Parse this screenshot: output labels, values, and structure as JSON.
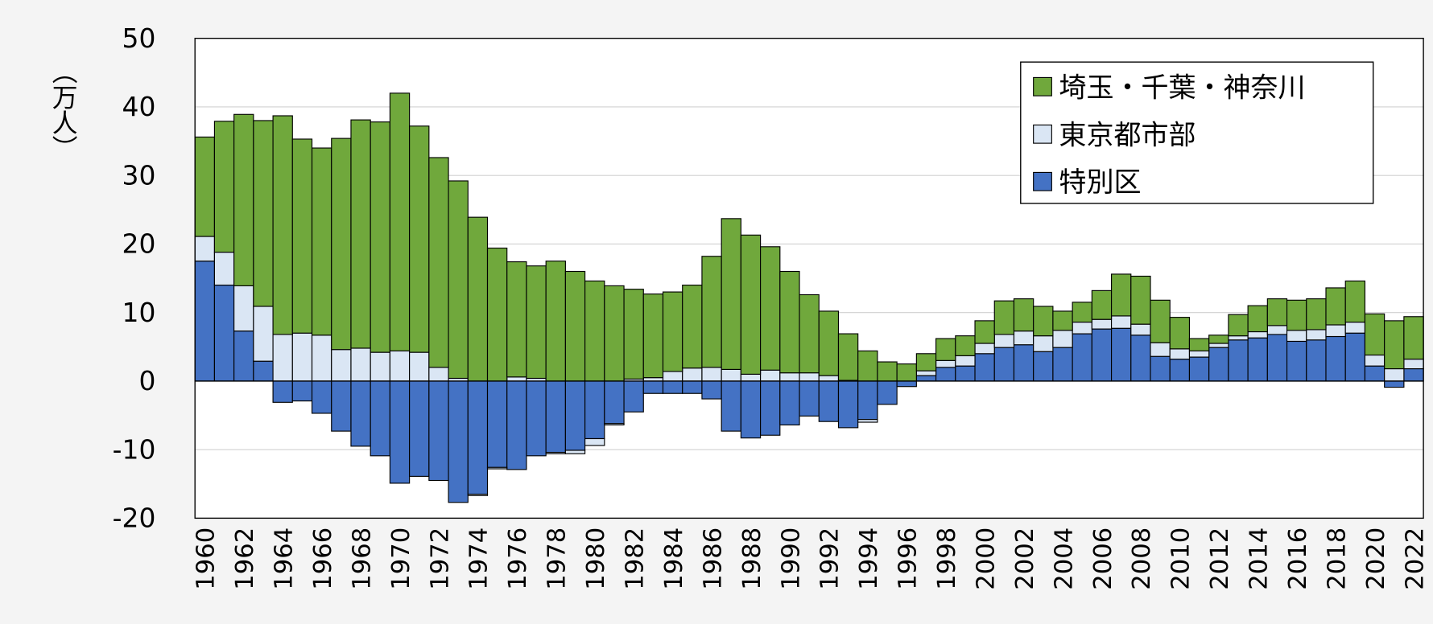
{
  "chart_data": {
    "type": "bar",
    "stacked": true,
    "y_label": "（万人）",
    "categories": [
      "1960",
      null,
      "1962",
      null,
      "1964",
      null,
      "1966",
      null,
      "1968",
      null,
      "1970",
      null,
      "1972",
      null,
      "1974",
      null,
      "1976",
      null,
      "1978",
      null,
      "1980",
      null,
      "1982",
      null,
      "1984",
      null,
      "1986",
      null,
      "1988",
      null,
      "1990",
      null,
      "1992",
      null,
      "1994",
      null,
      "1996",
      null,
      "1998",
      null,
      "2000",
      null,
      "2002",
      null,
      "2004",
      null,
      "2006",
      null,
      "2008",
      null,
      "2010",
      null,
      "2012",
      null,
      "2014",
      null,
      "2016",
      null,
      "2018",
      null,
      "2020",
      null,
      "2022"
    ],
    "series": [
      {
        "name": "特別区",
        "color": "#4472c4",
        "values": [
          17.5,
          14.0,
          7.3,
          2.9,
          -3.1,
          -2.9,
          -4.7,
          -7.3,
          -9.5,
          -10.9,
          -14.9,
          -13.9,
          -14.5,
          -17.7,
          -16.5,
          -12.6,
          -12.9,
          -10.9,
          -10.4,
          -10.1,
          -8.4,
          -6.2,
          -4.5,
          -1.8,
          -1.8,
          -1.8,
          -2.6,
          -7.3,
          -8.3,
          -7.9,
          -6.4,
          -5.1,
          -5.9,
          -6.8,
          -5.6,
          -3.4,
          -0.8,
          0.8,
          2.0,
          2.2,
          4.0,
          4.9,
          5.3,
          4.3,
          4.9,
          6.9,
          7.6,
          7.7,
          6.7,
          3.6,
          3.2,
          3.5,
          4.9,
          6.0,
          6.3,
          6.8,
          5.8,
          6.0,
          6.5,
          7.0,
          2.2,
          -0.9,
          1.8
        ]
      },
      {
        "name": "東京都市部",
        "color": "#dae6f4",
        "values": [
          3.6,
          4.8,
          6.6,
          8.0,
          6.8,
          7.0,
          6.7,
          4.6,
          4.8,
          4.2,
          4.4,
          4.2,
          2.0,
          0.4,
          -0.2,
          -0.2,
          0.6,
          0.4,
          -0.2,
          -0.5,
          -1.0,
          -0.2,
          0.3,
          0.5,
          1.4,
          1.9,
          2.0,
          1.7,
          1.0,
          1.6,
          1.2,
          1.2,
          0.8,
          0.1,
          -0.4,
          0,
          0,
          0.7,
          1.0,
          1.5,
          1.5,
          1.9,
          2.0,
          2.3,
          2.5,
          1.7,
          1.4,
          1.8,
          1.6,
          2.0,
          1.5,
          0.9,
          0.6,
          0.6,
          0.9,
          1.3,
          1.6,
          1.5,
          1.7,
          1.6,
          1.6,
          1.8,
          1.4
        ]
      },
      {
        "name": "埼玉・千葉・神奈川",
        "color": "#70a83c",
        "values": [
          14.5,
          19.1,
          25.0,
          27.1,
          31.9,
          28.3,
          27.3,
          30.8,
          33.3,
          33.6,
          37.6,
          33.0,
          30.6,
          28.8,
          23.9,
          19.4,
          16.8,
          16.4,
          17.5,
          16.0,
          14.6,
          13.9,
          13.1,
          12.2,
          11.6,
          12.1,
          16.2,
          22.0,
          20.3,
          18.0,
          14.8,
          11.4,
          9.4,
          6.8,
          4.4,
          2.8,
          2.5,
          2.5,
          3.2,
          2.9,
          3.3,
          4.9,
          4.7,
          4.3,
          2.8,
          2.9,
          4.2,
          6.1,
          7.0,
          6.2,
          4.6,
          1.8,
          1.2,
          3.1,
          3.8,
          3.9,
          4.4,
          4.5,
          5.4,
          6.0,
          6.0,
          7.0,
          6.2
        ]
      }
    ],
    "ylim": [
      -20,
      50
    ],
    "yticks": [
      -20,
      -10,
      0,
      10,
      20,
      30,
      40,
      50
    ],
    "grid": true,
    "legend": "upper right"
  }
}
